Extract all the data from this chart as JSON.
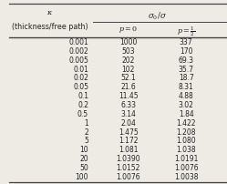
{
  "header_top": "$\\sigma_0/\\sigma$",
  "kappa_label_line1": "$\\kappa$",
  "kappa_label_line2": "(thickness/free path)",
  "col_header_1": "$p=0$",
  "col_header_2": "$p=\\frac{1}{2}$",
  "rows": [
    [
      "0.001",
      "1000",
      "337"
    ],
    [
      "0.002",
      "503",
      "170"
    ],
    [
      "0.005",
      "202",
      "69.3"
    ],
    [
      "0.01",
      "102",
      "35.7"
    ],
    [
      "0.02",
      "52.1",
      "18.7"
    ],
    [
      "0.05",
      "21.6",
      "8.31"
    ],
    [
      "0.1",
      "11.45",
      "4.88"
    ],
    [
      "0.2",
      "6.33",
      "3.02"
    ],
    [
      "0.5",
      "3.14",
      "1.84"
    ],
    [
      "1",
      "2.04",
      "1.422"
    ],
    [
      "2",
      "1.475",
      "1.208"
    ],
    [
      "5",
      "1.172",
      "1.080"
    ],
    [
      "10",
      "1.081",
      "1.038"
    ],
    [
      "20",
      "1.0390",
      "1.0191"
    ],
    [
      "50",
      "1.0152",
      "1.0076"
    ],
    [
      "100",
      "1.0076",
      "1.0038"
    ]
  ],
  "bg_color": "#eeebe5",
  "text_color": "#222222",
  "line_color": "#444444",
  "fontsize": 5.5,
  "header_fontsize": 5.8
}
